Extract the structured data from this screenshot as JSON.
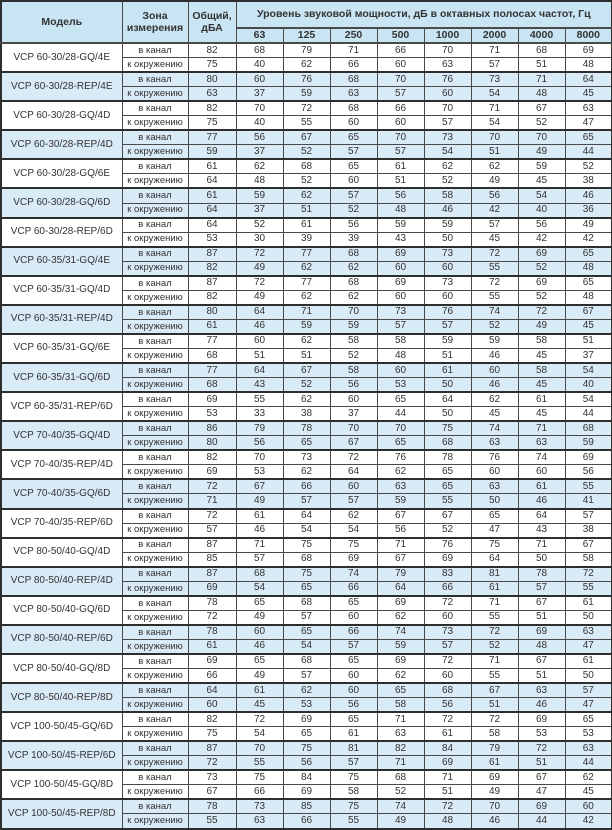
{
  "table": {
    "header": {
      "model": "Модель",
      "zone": "Зона измерения",
      "total": "Общий, дБА",
      "bands_title": "Уровень звуковой мощности, дБ в октавных полосах частот, Гц",
      "bands": [
        "63",
        "125",
        "250",
        "500",
        "1000",
        "2000",
        "4000",
        "8000"
      ]
    },
    "colors": {
      "header_bg": "#c9e4f3",
      "stripe_bg": "#d9ebf7",
      "border_dark": "#2e2e2e",
      "border_mid": "#4a4a4a",
      "text": "#333333"
    },
    "models": [
      {
        "name": "VCP 60-30/28-GQ/4E",
        "shaded": false,
        "rows": [
          {
            "zone": "в канал",
            "total": 82,
            "bands": [
              68,
              79,
              71,
              66,
              70,
              71,
              68,
              69
            ]
          },
          {
            "zone": "к окружению",
            "total": 75,
            "bands": [
              40,
              62,
              66,
              60,
              63,
              57,
              51,
              48
            ]
          }
        ]
      },
      {
        "name": "VCP 60-30/28-REP/4E",
        "shaded": true,
        "rows": [
          {
            "zone": "в канал",
            "total": 80,
            "bands": [
              60,
              76,
              68,
              70,
              76,
              73,
              71,
              64
            ]
          },
          {
            "zone": "к окружению",
            "total": 63,
            "bands": [
              37,
              59,
              63,
              57,
              60,
              54,
              48,
              45
            ]
          }
        ]
      },
      {
        "name": "VCP 60-30/28-GQ/4D",
        "shaded": false,
        "rows": [
          {
            "zone": "в канал",
            "total": 82,
            "bands": [
              70,
              72,
              68,
              66,
              70,
              71,
              67,
              63
            ]
          },
          {
            "zone": "к окружению",
            "total": 75,
            "bands": [
              40,
              55,
              60,
              60,
              57,
              54,
              52,
              47
            ]
          }
        ]
      },
      {
        "name": "VCP 60-30/28-REP/4D",
        "shaded": true,
        "rows": [
          {
            "zone": "в канал",
            "total": 77,
            "bands": [
              56,
              67,
              65,
              70,
              73,
              70,
              70,
              65
            ]
          },
          {
            "zone": "к окружению",
            "total": 59,
            "bands": [
              37,
              52,
              57,
              57,
              54,
              51,
              49,
              44
            ]
          }
        ]
      },
      {
        "name": "VCP 60-30/28-GQ/6E",
        "shaded": false,
        "rows": [
          {
            "zone": "в канал",
            "total": 61,
            "bands": [
              62,
              68,
              65,
              61,
              62,
              62,
              59,
              52
            ]
          },
          {
            "zone": "к окружению",
            "total": 64,
            "bands": [
              48,
              52,
              60,
              51,
              52,
              49,
              45,
              38
            ]
          }
        ]
      },
      {
        "name": "VCP 60-30/28-GQ/6D",
        "shaded": true,
        "rows": [
          {
            "zone": "в канал",
            "total": 61,
            "bands": [
              59,
              62,
              57,
              56,
              58,
              56,
              54,
              46
            ]
          },
          {
            "zone": "к окружению",
            "total": 64,
            "bands": [
              37,
              51,
              52,
              48,
              46,
              42,
              40,
              36
            ]
          }
        ]
      },
      {
        "name": "VCP 60-30/28-REP/6D",
        "shaded": false,
        "rows": [
          {
            "zone": "в канал",
            "total": 64,
            "bands": [
              52,
              61,
              56,
              59,
              59,
              57,
              56,
              49
            ]
          },
          {
            "zone": "к окружению",
            "total": 53,
            "bands": [
              30,
              39,
              39,
              43,
              50,
              45,
              42,
              42
            ]
          }
        ]
      },
      {
        "name": "VCP 60-35/31-GQ/4E",
        "shaded": true,
        "rows": [
          {
            "zone": "в канал",
            "total": 87,
            "bands": [
              72,
              77,
              68,
              69,
              73,
              72,
              69,
              65
            ]
          },
          {
            "zone": "к окружению",
            "total": 82,
            "bands": [
              49,
              62,
              62,
              60,
              60,
              55,
              52,
              48
            ]
          }
        ]
      },
      {
        "name": "VCP 60-35/31-GQ/4D",
        "shaded": false,
        "rows": [
          {
            "zone": "в канал",
            "total": 87,
            "bands": [
              72,
              77,
              68,
              69,
              73,
              72,
              69,
              65
            ]
          },
          {
            "zone": "к окружению",
            "total": 82,
            "bands": [
              49,
              62,
              62,
              60,
              60,
              55,
              52,
              48
            ]
          }
        ]
      },
      {
        "name": "VCP 60-35/31-REP/4D",
        "shaded": true,
        "rows": [
          {
            "zone": "в канал",
            "total": 80,
            "bands": [
              64,
              71,
              70,
              73,
              76,
              74,
              72,
              67
            ]
          },
          {
            "zone": "к окружению",
            "total": 61,
            "bands": [
              46,
              59,
              59,
              57,
              57,
              52,
              49,
              45
            ]
          }
        ]
      },
      {
        "name": "VCP 60-35/31-GQ/6E",
        "shaded": false,
        "rows": [
          {
            "zone": "в канал",
            "total": 77,
            "bands": [
              60,
              62,
              58,
              58,
              59,
              59,
              58,
              51
            ]
          },
          {
            "zone": "к окружению",
            "total": 68,
            "bands": [
              51,
              51,
              52,
              48,
              51,
              46,
              45,
              37
            ]
          }
        ]
      },
      {
        "name": "VCP 60-35/31-GQ/6D",
        "shaded": true,
        "rows": [
          {
            "zone": "в канал",
            "total": 77,
            "bands": [
              64,
              67,
              58,
              60,
              61,
              60,
              58,
              54
            ]
          },
          {
            "zone": "к окружению",
            "total": 68,
            "bands": [
              43,
              52,
              56,
              53,
              50,
              46,
              45,
              40
            ]
          }
        ]
      },
      {
        "name": "VCP 60-35/31-REP/6D",
        "shaded": false,
        "rows": [
          {
            "zone": "в канал",
            "total": 69,
            "bands": [
              55,
              62,
              60,
              65,
              64,
              62,
              61,
              54
            ]
          },
          {
            "zone": "к окружению",
            "total": 53,
            "bands": [
              33,
              38,
              37,
              44,
              50,
              45,
              45,
              44
            ]
          }
        ]
      },
      {
        "name": "VCP 70-40/35-GQ/4D",
        "shaded": true,
        "rows": [
          {
            "zone": "в канал",
            "total": 86,
            "bands": [
              79,
              78,
              70,
              70,
              75,
              74,
              71,
              68
            ]
          },
          {
            "zone": "к окружению",
            "total": 80,
            "bands": [
              56,
              65,
              67,
              65,
              68,
              63,
              63,
              59
            ]
          }
        ]
      },
      {
        "name": "VCP 70-40/35-REP/4D",
        "shaded": false,
        "rows": [
          {
            "zone": "в канал",
            "total": 82,
            "bands": [
              70,
              73,
              72,
              76,
              78,
              76,
              74,
              69
            ]
          },
          {
            "zone": "к окружению",
            "total": 69,
            "bands": [
              53,
              62,
              64,
              62,
              65,
              60,
              60,
              56
            ]
          }
        ]
      },
      {
        "name": "VCP 70-40/35-GQ/6D",
        "shaded": true,
        "rows": [
          {
            "zone": "в канал",
            "total": 72,
            "bands": [
              67,
              66,
              60,
              63,
              65,
              63,
              61,
              55
            ]
          },
          {
            "zone": "к окружению",
            "total": 71,
            "bands": [
              49,
              57,
              57,
              59,
              55,
              50,
              46,
              41
            ]
          }
        ]
      },
      {
        "name": "VCP 70-40/35-REP/6D",
        "shaded": false,
        "rows": [
          {
            "zone": "в канал",
            "total": 72,
            "bands": [
              61,
              64,
              62,
              67,
              67,
              65,
              64,
              57
            ]
          },
          {
            "zone": "к окружению",
            "total": 57,
            "bands": [
              46,
              54,
              54,
              56,
              52,
              47,
              43,
              38
            ]
          }
        ]
      },
      {
        "name": "VCP 80-50/40-GQ/4D",
        "shaded": false,
        "rows": [
          {
            "zone": "в канал",
            "total": 87,
            "bands": [
              71,
              75,
              75,
              71,
              76,
              75,
              71,
              67
            ]
          },
          {
            "zone": "к окружению",
            "total": 85,
            "bands": [
              57,
              68,
              69,
              67,
              69,
              64,
              50,
              58
            ]
          }
        ]
      },
      {
        "name": "VCP 80-50/40-REP/4D",
        "shaded": true,
        "rows": [
          {
            "zone": "в канал",
            "total": 87,
            "bands": [
              68,
              75,
              74,
              79,
              83,
              81,
              78,
              72
            ]
          },
          {
            "zone": "к окружению",
            "total": 69,
            "bands": [
              54,
              65,
              66,
              64,
              66,
              61,
              57,
              55
            ]
          }
        ]
      },
      {
        "name": "VCP 80-50/40-GQ/6D",
        "shaded": false,
        "rows": [
          {
            "zone": "в канал",
            "total": 78,
            "bands": [
              65,
              68,
              65,
              69,
              72,
              71,
              67,
              61
            ]
          },
          {
            "zone": "к окружению",
            "total": 72,
            "bands": [
              49,
              57,
              60,
              62,
              60,
              55,
              51,
              50
            ]
          }
        ]
      },
      {
        "name": "VCP 80-50/40-REP/6D",
        "shaded": true,
        "rows": [
          {
            "zone": "в канал",
            "total": 78,
            "bands": [
              60,
              65,
              66,
              74,
              73,
              72,
              69,
              63
            ]
          },
          {
            "zone": "к окружению",
            "total": 61,
            "bands": [
              46,
              54,
              57,
              59,
              57,
              52,
              48,
              47
            ]
          }
        ]
      },
      {
        "name": "VCP 80-50/40-GQ/8D",
        "shaded": false,
        "rows": [
          {
            "zone": "в канал",
            "total": 69,
            "bands": [
              65,
              68,
              65,
              69,
              72,
              71,
              67,
              61
            ]
          },
          {
            "zone": "к окружению",
            "total": 66,
            "bands": [
              49,
              57,
              60,
              62,
              60,
              55,
              51,
              50
            ]
          }
        ]
      },
      {
        "name": "VCP 80-50/40-REP/8D",
        "shaded": true,
        "rows": [
          {
            "zone": "в канал",
            "total": 64,
            "bands": [
              61,
              62,
              60,
              65,
              68,
              67,
              63,
              57
            ]
          },
          {
            "zone": "к окружению",
            "total": 60,
            "bands": [
              45,
              53,
              56,
              58,
              56,
              51,
              46,
              47
            ]
          }
        ]
      },
      {
        "name": "VCP 100-50/45-GQ/6D",
        "shaded": false,
        "rows": [
          {
            "zone": "в канал",
            "total": 82,
            "bands": [
              72,
              69,
              65,
              71,
              72,
              72,
              69,
              65
            ]
          },
          {
            "zone": "к окружению",
            "total": 75,
            "bands": [
              54,
              65,
              61,
              63,
              61,
              58,
              53,
              53
            ]
          }
        ]
      },
      {
        "name": "VCP 100-50/45-REP/6D",
        "shaded": true,
        "rows": [
          {
            "zone": "в канал",
            "total": 87,
            "bands": [
              70,
              75,
              81,
              82,
              84,
              79,
              72,
              63
            ]
          },
          {
            "zone": "к окружению",
            "total": 72,
            "bands": [
              55,
              56,
              57,
              71,
              69,
              61,
              51,
              44
            ]
          }
        ]
      },
      {
        "name": "VCP 100-50/45-GQ/8D",
        "shaded": false,
        "rows": [
          {
            "zone": "в канал",
            "total": 73,
            "bands": [
              75,
              84,
              75,
              68,
              71,
              69,
              67,
              62
            ]
          },
          {
            "zone": "к окружению",
            "total": 67,
            "bands": [
              66,
              69,
              58,
              52,
              51,
              49,
              47,
              45
            ]
          }
        ]
      },
      {
        "name": "VCP 100-50/45-REP/8D",
        "shaded": true,
        "rows": [
          {
            "zone": "в канал",
            "total": 78,
            "bands": [
              73,
              85,
              75,
              74,
              72,
              70,
              69,
              60
            ]
          },
          {
            "zone": "к окружению",
            "total": 55,
            "bands": [
              63,
              66,
              55,
              49,
              48,
              46,
              44,
              42
            ]
          }
        ]
      }
    ]
  }
}
